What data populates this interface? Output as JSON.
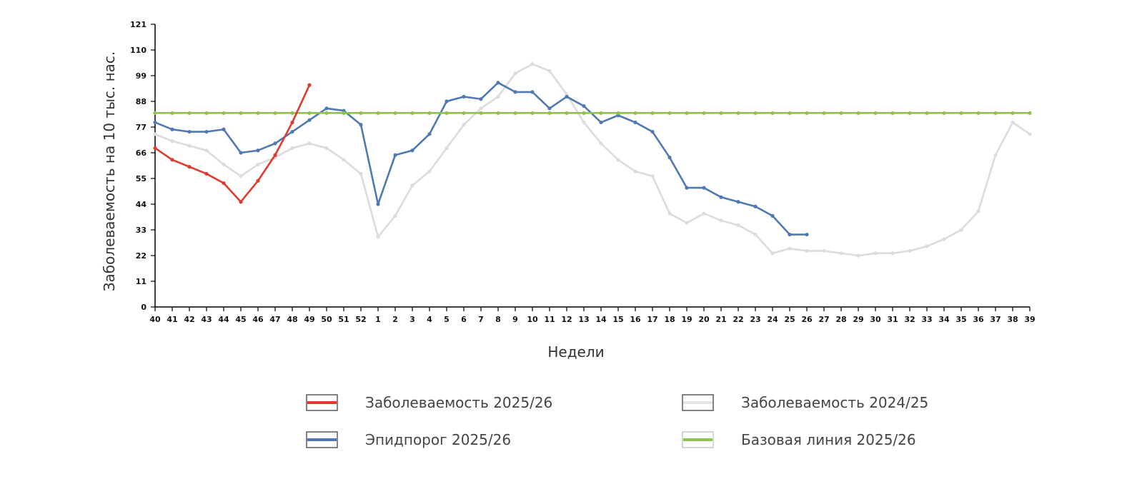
{
  "chart_data": {
    "type": "line",
    "xlabel": "Недели",
    "ylabel": "Заболеваемость на 10 тыс. нас.",
    "categories": [
      "40",
      "41",
      "42",
      "43",
      "44",
      "45",
      "46",
      "47",
      "48",
      "49",
      "50",
      "51",
      "52",
      "1",
      "2",
      "3",
      "4",
      "5",
      "6",
      "7",
      "8",
      "9",
      "10",
      "11",
      "12",
      "13",
      "14",
      "15",
      "16",
      "17",
      "18",
      "19",
      "20",
      "21",
      "22",
      "23",
      "24",
      "25",
      "26",
      "27",
      "28",
      "29",
      "30",
      "31",
      "32",
      "33",
      "34",
      "35",
      "36",
      "37",
      "38",
      "39"
    ],
    "yticks": [
      0,
      11,
      22,
      33,
      44,
      55,
      66,
      77,
      88,
      99,
      110,
      121
    ],
    "ylim": [
      0,
      121
    ],
    "grid": false,
    "legend_position": "bottom",
    "series": [
      {
        "name": "Заболеваемость 2024/25",
        "color": "#dcdcdc",
        "values": [
          74,
          71,
          69,
          67,
          61,
          56,
          61,
          64,
          68,
          70,
          68,
          63,
          57,
          30,
          39,
          52,
          58,
          68,
          78,
          85,
          90,
          100,
          104,
          101,
          91,
          79,
          70,
          63,
          58,
          56,
          40,
          36,
          40,
          37,
          35,
          31,
          23,
          25,
          24,
          24,
          23,
          22,
          23,
          23,
          24,
          26,
          29,
          33,
          41,
          65,
          79,
          74
        ]
      },
      {
        "name": "Эпидпорог 2025/26",
        "color": "#4f79b2",
        "values": [
          79,
          76,
          75,
          75,
          76,
          66,
          67,
          70,
          75,
          80,
          85,
          84,
          78,
          44,
          65,
          67,
          74,
          88,
          90,
          89,
          96,
          92,
          92,
          85,
          90,
          86,
          79,
          82,
          79,
          75,
          64,
          51,
          51,
          47,
          45,
          43,
          39,
          31,
          31,
          null,
          null,
          null,
          null,
          null,
          null,
          null,
          null,
          null,
          null,
          null,
          null,
          null
        ]
      },
      {
        "name": "Базовая линия 2025/26",
        "color": "#8fc24a",
        "values": [
          83,
          83,
          83,
          83,
          83,
          83,
          83,
          83,
          83,
          83,
          83,
          83,
          83,
          83,
          83,
          83,
          83,
          83,
          83,
          83,
          83,
          83,
          83,
          83,
          83,
          83,
          83,
          83,
          83,
          83,
          83,
          83,
          83,
          83,
          83,
          83,
          83,
          83,
          83,
          83,
          83,
          83,
          83,
          83,
          83,
          83,
          83,
          83,
          83,
          83,
          83,
          83
        ]
      },
      {
        "name": "Заболеваемость 2025/26",
        "color": "#e03a2f",
        "values": [
          68,
          63,
          60,
          57,
          53,
          45,
          54,
          65,
          79,
          95,
          null,
          null,
          null,
          null,
          null,
          null,
          null,
          null,
          null,
          null,
          null,
          null,
          null,
          null,
          null,
          null,
          null,
          null,
          null,
          null,
          null,
          null,
          null,
          null,
          null,
          null,
          null,
          null,
          null,
          null,
          null,
          null,
          null,
          null,
          null,
          null,
          null,
          null,
          null,
          null,
          null,
          null
        ]
      }
    ],
    "legend": [
      {
        "label": "Заболеваемость 2025/26",
        "color": "#e03a2f",
        "outline": "#333333"
      },
      {
        "label": "Заболеваемость 2024/25",
        "color": "#e6e6e6",
        "outline": "#333333"
      },
      {
        "label": "Эпидпорог 2025/26",
        "color": "#4f79b2",
        "outline": "#333333"
      },
      {
        "label": "Базовая линия 2025/26",
        "color": "#8fc24a",
        "outline": "#bbbbbb"
      }
    ]
  }
}
